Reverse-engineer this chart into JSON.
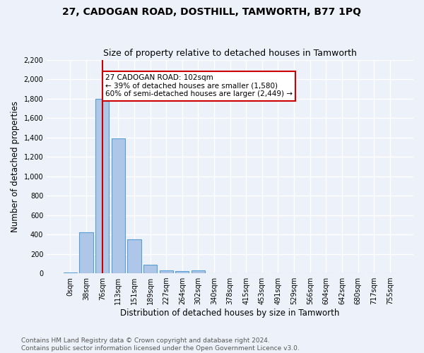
{
  "title": "27, CADOGAN ROAD, DOSTHILL, TAMWORTH, B77 1PQ",
  "subtitle": "Size of property relative to detached houses in Tamworth",
  "xlabel": "Distribution of detached houses by size in Tamworth",
  "ylabel": "Number of detached properties",
  "bar_labels": [
    "0sqm",
    "38sqm",
    "76sqm",
    "113sqm",
    "151sqm",
    "189sqm",
    "227sqm",
    "264sqm",
    "302sqm",
    "340sqm",
    "378sqm",
    "415sqm",
    "453sqm",
    "491sqm",
    "529sqm",
    "566sqm",
    "604sqm",
    "642sqm",
    "680sqm",
    "717sqm",
    "755sqm"
  ],
  "bar_values": [
    10,
    420,
    1800,
    1390,
    350,
    85,
    30,
    25,
    28,
    0,
    0,
    0,
    0,
    0,
    0,
    0,
    0,
    0,
    0,
    0,
    0
  ],
  "bar_color": "#aec6e8",
  "bar_edge_color": "#5a9fd4",
  "vline_x": 2.0,
  "vline_color": "#cc0000",
  "annotation_text": "27 CADOGAN ROAD: 102sqm\n← 39% of detached houses are smaller (1,580)\n60% of semi-detached houses are larger (2,449) →",
  "annotation_box_color": "#ffffff",
  "annotation_box_edge_color": "#cc0000",
  "ylim": [
    0,
    2200
  ],
  "yticks": [
    0,
    200,
    400,
    600,
    800,
    1000,
    1200,
    1400,
    1600,
    1800,
    2000,
    2200
  ],
  "footnote": "Contains HM Land Registry data © Crown copyright and database right 2024.\nContains public sector information licensed under the Open Government Licence v3.0.",
  "bg_color": "#edf2fa",
  "plot_bg_color": "#edf2fa",
  "grid_color": "#ffffff",
  "title_fontsize": 10,
  "subtitle_fontsize": 9,
  "xlabel_fontsize": 8.5,
  "ylabel_fontsize": 8.5,
  "footnote_fontsize": 6.5,
  "tick_fontsize": 7,
  "annotation_fontsize": 7.5
}
